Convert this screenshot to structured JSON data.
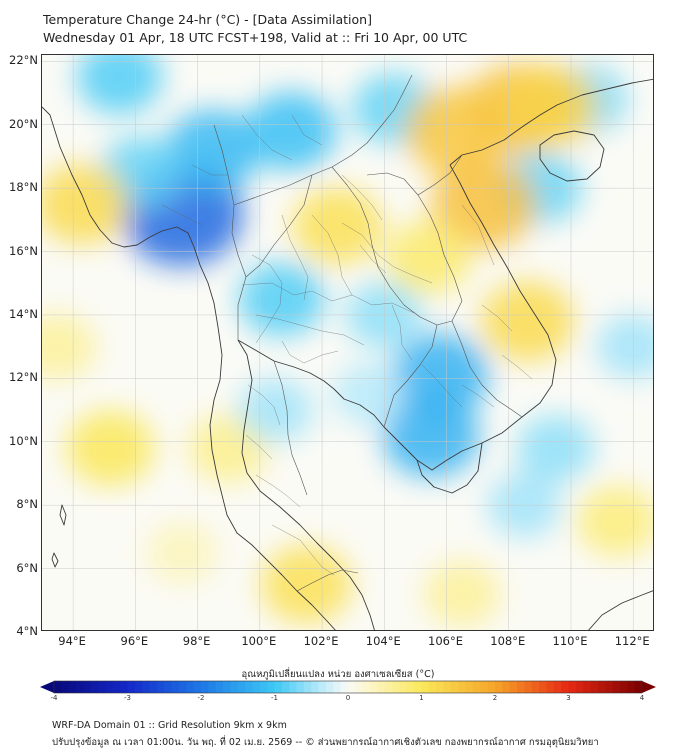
{
  "title_line1": "Temperature Change 24-hr (°C) - [Data Assimilation]",
  "title_line2": "Wednesday 01 Apr, 18 UTC FCST+198, Valid at :: Fri 10 Apr, 00 UTC",
  "map": {
    "lon_range": [
      93,
      112.7
    ],
    "lat_range": [
      4,
      22.2
    ],
    "lat_labels": [
      "22°N",
      "20°N",
      "18°N",
      "16°N",
      "14°N",
      "12°N",
      "10°N",
      "8°N",
      "6°N",
      "4°N"
    ],
    "lon_labels": [
      "94°E",
      "96°E",
      "98°E",
      "100°E",
      "102°E",
      "104°E",
      "106°E",
      "108°E",
      "110°E",
      "112°E"
    ],
    "lat_values": [
      22,
      20,
      18,
      16,
      14,
      12,
      10,
      8,
      6,
      4
    ],
    "lon_values": [
      94,
      96,
      98,
      100,
      102,
      104,
      106,
      108,
      110,
      112
    ],
    "anomaly_blobs": [
      {
        "lon": 97.5,
        "lat": 17.2,
        "value": -2.2
      },
      {
        "lon": 98.5,
        "lat": 19.2,
        "value": -1.2
      },
      {
        "lon": 101.0,
        "lat": 19.8,
        "value": -1.1
      },
      {
        "lon": 95.5,
        "lat": 21.5,
        "value": -0.9
      },
      {
        "lon": 96.2,
        "lat": 18.5,
        "value": -0.8
      },
      {
        "lon": 100.7,
        "lat": 14.5,
        "value": -0.9
      },
      {
        "lon": 104.3,
        "lat": 20.5,
        "value": -0.8
      },
      {
        "lon": 105.8,
        "lat": 12.1,
        "value": -1.3
      },
      {
        "lon": 105.5,
        "lat": 10.2,
        "value": -1.3
      },
      {
        "lon": 104.0,
        "lat": 14.0,
        "value": -0.6
      },
      {
        "lon": 109.0,
        "lat": 18.0,
        "value": -0.8
      },
      {
        "lon": 110.5,
        "lat": 20.8,
        "value": -0.7
      },
      {
        "lon": 108.3,
        "lat": 20.5,
        "value": 1.6
      },
      {
        "lon": 109.3,
        "lat": 20.6,
        "value": 1.3
      },
      {
        "lon": 106.3,
        "lat": 19.8,
        "value": 1.5
      },
      {
        "lon": 107.2,
        "lat": 17.5,
        "value": 1.6
      },
      {
        "lon": 94.3,
        "lat": 17.5,
        "value": 1.2
      },
      {
        "lon": 102.5,
        "lat": 16.8,
        "value": 1.1
      },
      {
        "lon": 105.4,
        "lat": 15.8,
        "value": 0.9
      },
      {
        "lon": 108.6,
        "lat": 13.8,
        "value": 1.2
      },
      {
        "lon": 95.2,
        "lat": 9.8,
        "value": 1.0
      },
      {
        "lon": 93.5,
        "lat": 13.0,
        "value": 0.6
      },
      {
        "lon": 101.5,
        "lat": 5.5,
        "value": 1.1
      },
      {
        "lon": 106.5,
        "lat": 5.2,
        "value": 0.6
      },
      {
        "lon": 99.0,
        "lat": 9.8,
        "value": 0.7
      },
      {
        "lon": 111.5,
        "lat": 7.5,
        "value": 0.8
      },
      {
        "lon": 109.5,
        "lat": 9.8,
        "value": -0.6
      },
      {
        "lon": 108.5,
        "lat": 8.0,
        "value": -0.5
      },
      {
        "lon": 97.5,
        "lat": 6.5,
        "value": 0.4
      },
      {
        "lon": 103.5,
        "lat": 11.5,
        "value": -0.4
      },
      {
        "lon": 100.5,
        "lat": 11.0,
        "value": -0.5
      },
      {
        "lon": 112.0,
        "lat": 13.0,
        "value": -0.5
      }
    ]
  },
  "colorbar": {
    "title": "อุณหภูมิเปลี่ยนแปลง หน่วย องศาเซลเซียส (°C)",
    "min": -4,
    "max": 4,
    "ticks": [
      "-4",
      "-3",
      "-2",
      "-1",
      "0",
      "1",
      "2",
      "3",
      "4"
    ],
    "tick_values": [
      -4,
      -3,
      -2,
      -1,
      0,
      1,
      2,
      3,
      4
    ]
  },
  "footer_line1": "WRF-DA Domain 01 :: Grid Resolution 9km x 9km",
  "footer_line2": "ปรับปรุงข้อมูล ณ เวลา 01:00น. วัน พฤ. ที่ 02 เม.ย. 2569 -- © ส่วนพยากรณ์อากาศเชิงตัวเลข กองพยากรณ์อากาศ กรมอุตุนิยมวิทยา"
}
